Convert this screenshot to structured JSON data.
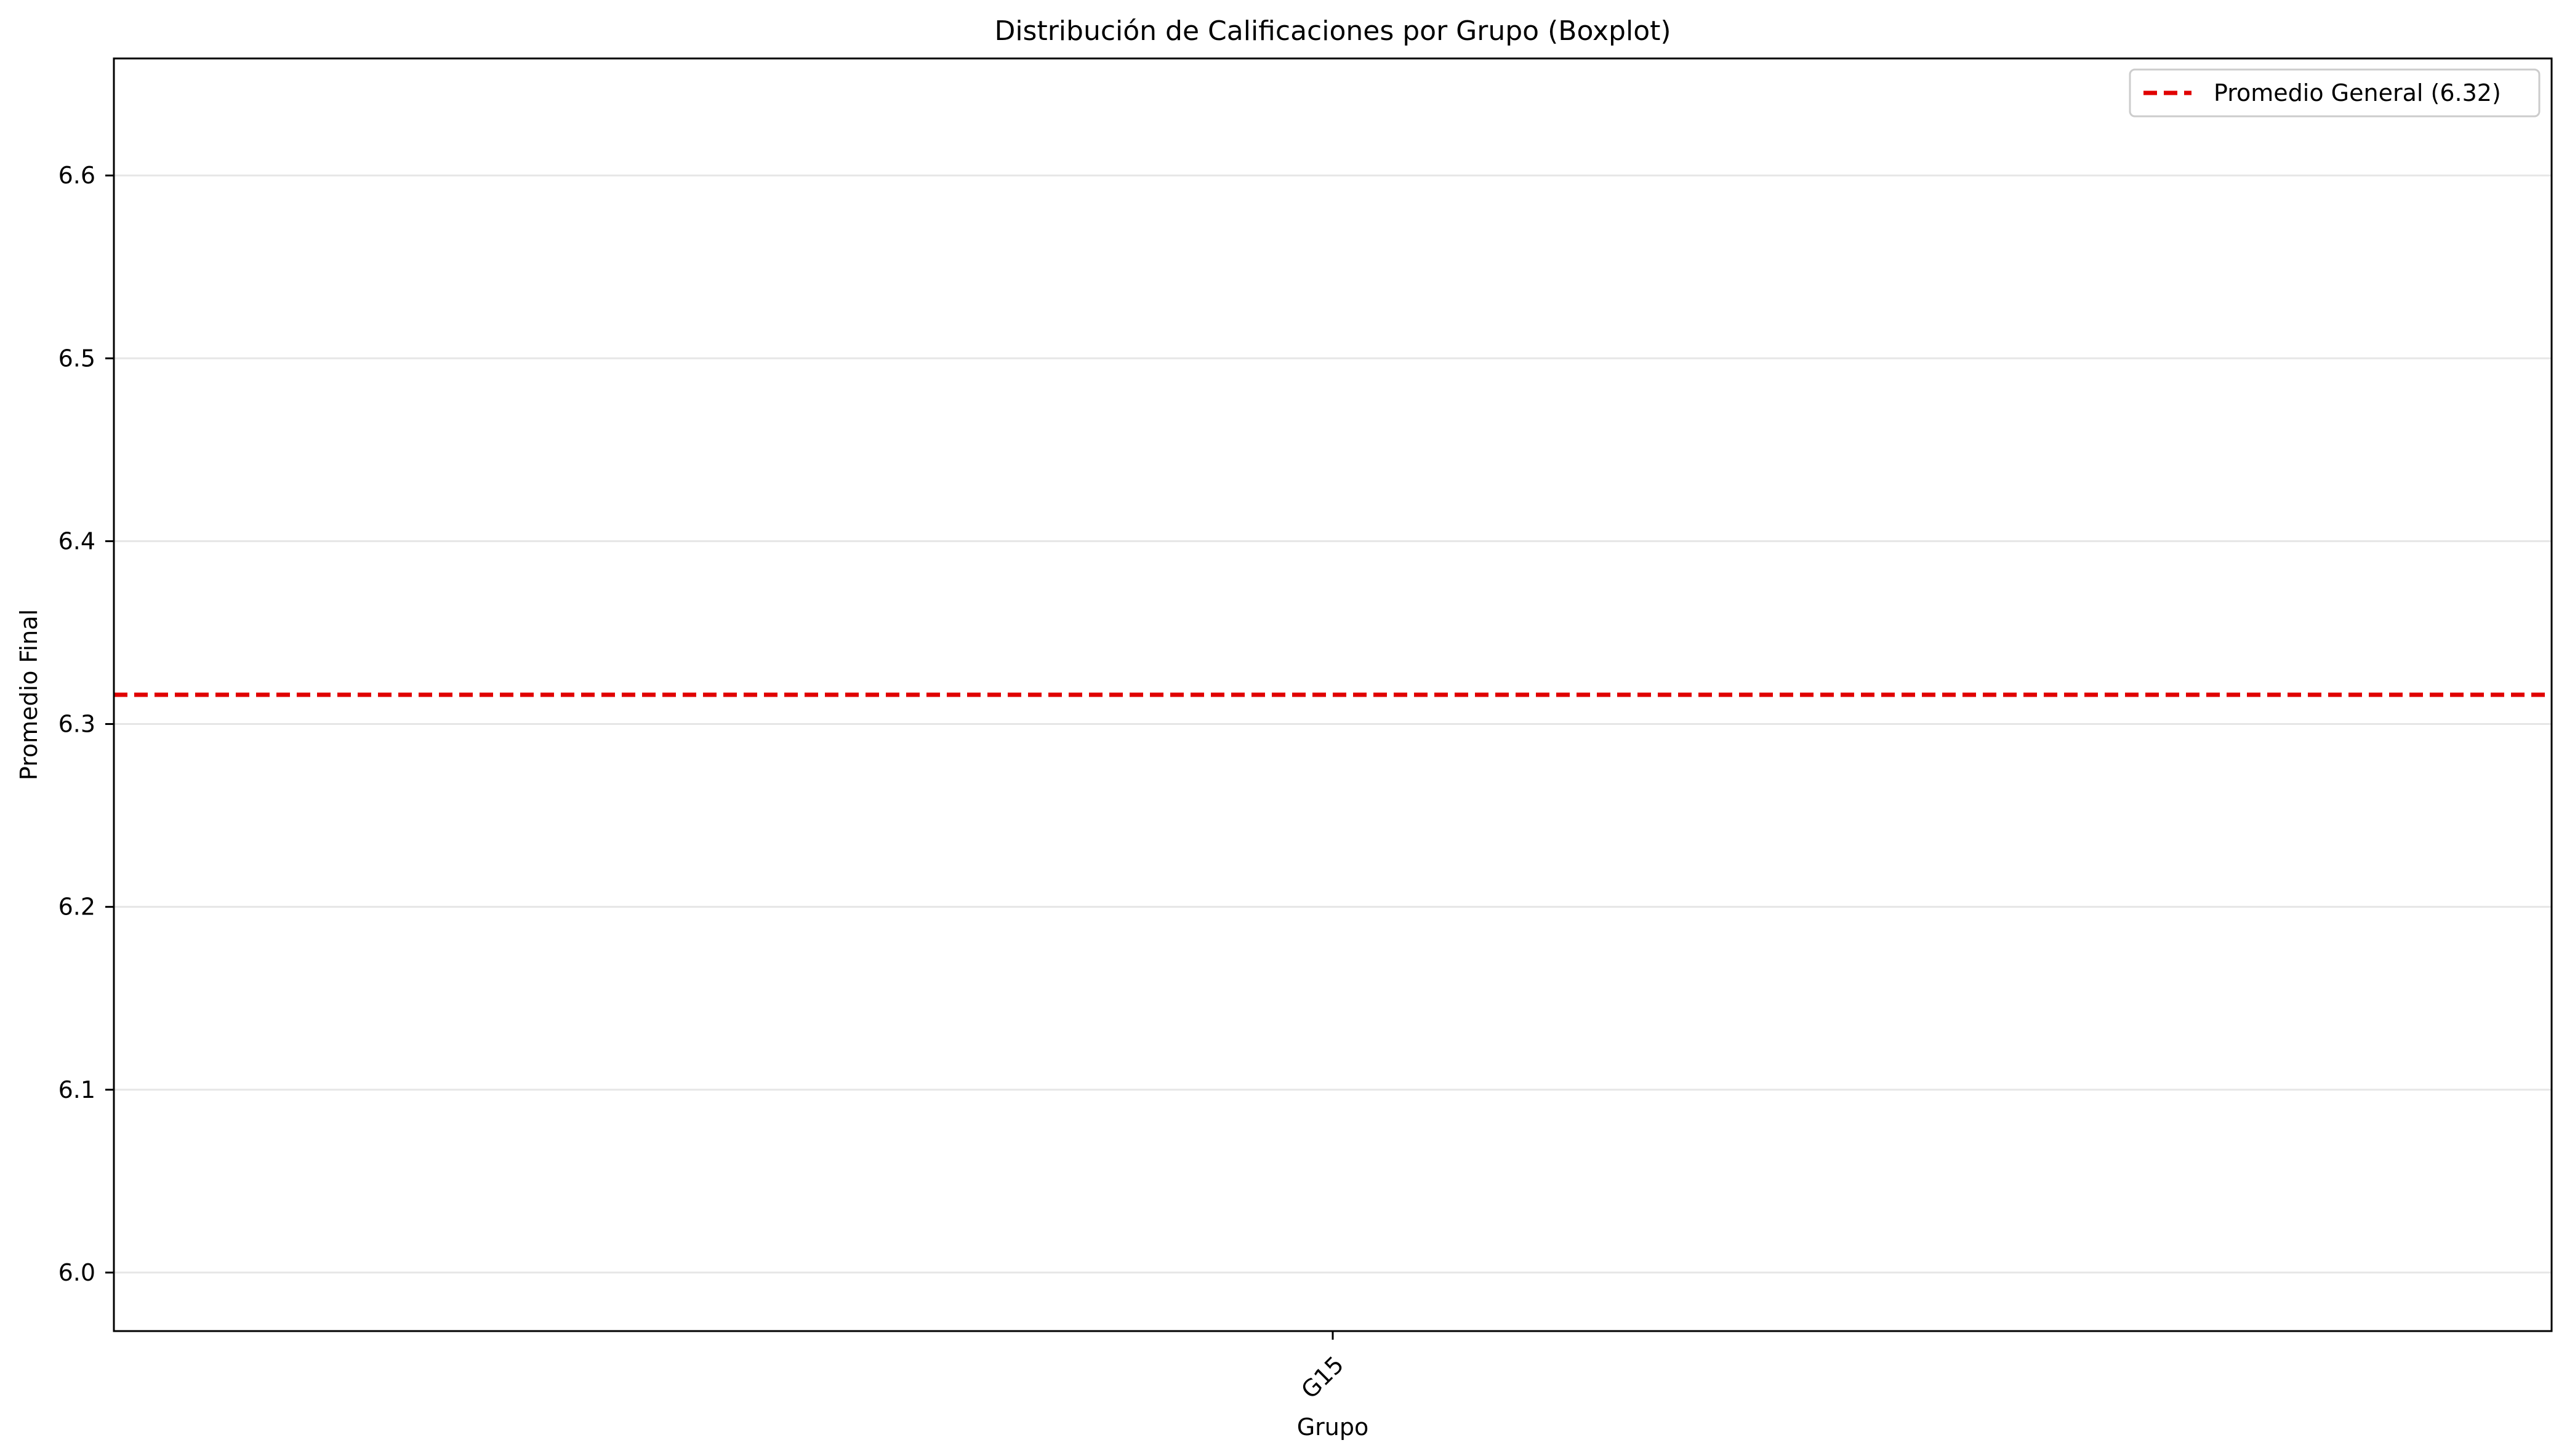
{
  "chart_data": {
    "type": "box",
    "title": "Distribución de Calificaciones por Grupo (Boxplot)",
    "xlabel": "Grupo",
    "ylabel": "Promedio Final",
    "categories": [
      "G15"
    ],
    "ylim": [
      5.968,
      6.664
    ],
    "yticks": [
      6.0,
      6.1,
      6.2,
      6.3,
      6.4,
      6.5,
      6.6
    ],
    "ytick_labels": [
      "6.0",
      "6.1",
      "6.2",
      "6.3",
      "6.4",
      "6.5",
      "6.6"
    ],
    "grid": "y",
    "reference_line": {
      "value": 6.316,
      "label": "Promedio General (6.32)",
      "color": "#e00000",
      "style": "dashed"
    },
    "legend": {
      "placement": "top-right"
    }
  }
}
